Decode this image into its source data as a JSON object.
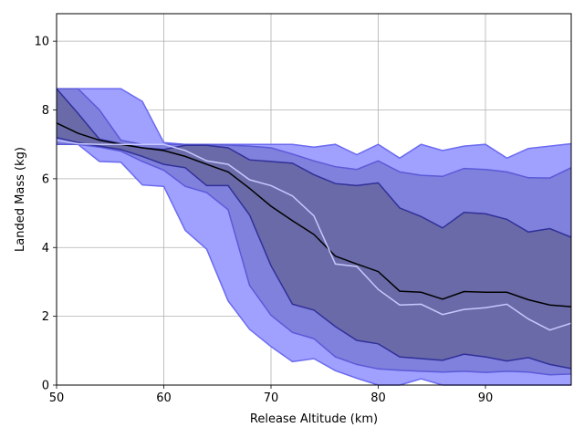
{
  "chart_data": {
    "type": "area",
    "title": "",
    "xlabel": "Release Altitude (km)",
    "ylabel": "Landed Mass (kg)",
    "xlim": [
      50,
      98
    ],
    "ylim": [
      0,
      10.8
    ],
    "xticks": [
      50,
      60,
      70,
      80,
      90
    ],
    "yticks": [
      0,
      2,
      4,
      6,
      8,
      10
    ],
    "grid": true,
    "x": [
      50,
      52,
      54,
      56,
      58,
      60,
      62,
      64,
      66,
      68,
      70,
      72,
      74,
      76,
      78,
      80,
      82,
      84,
      86,
      88,
      90,
      92,
      94,
      96,
      98
    ],
    "bands": [
      {
        "role": "outer",
        "color": "#a0a0ff",
        "edge_color": "#6a6af0",
        "upper": [
          8.62,
          8.62,
          8.62,
          8.62,
          8.25,
          7.05,
          7.0,
          7.0,
          7.0,
          7.0,
          7.0,
          7.0,
          6.92,
          7.0,
          6.7,
          7.0,
          6.6,
          7.0,
          6.82,
          6.95,
          7.0,
          6.6,
          6.88,
          6.95,
          7.02
        ],
        "lower": [
          7.0,
          7.0,
          6.5,
          6.48,
          5.82,
          5.78,
          4.5,
          3.95,
          2.45,
          1.62,
          1.12,
          0.68,
          0.77,
          0.42,
          0.2,
          0.0,
          0.0,
          0.18,
          0.0,
          0.0,
          0.0,
          0.0,
          0.0,
          0.0,
          0.0
        ]
      },
      {
        "role": "middle",
        "color": "#8080dd",
        "edge_color": "#5a5ad8",
        "upper": [
          8.62,
          8.62,
          8.0,
          7.12,
          7.0,
          7.0,
          7.0,
          7.0,
          6.98,
          6.95,
          6.9,
          6.72,
          6.52,
          6.35,
          6.27,
          6.52,
          6.2,
          6.1,
          6.07,
          6.3,
          6.27,
          6.2,
          6.03,
          6.02,
          6.32
        ],
        "lower": [
          7.0,
          7.0,
          6.92,
          6.8,
          6.5,
          6.25,
          5.78,
          5.6,
          5.1,
          2.9,
          2.03,
          1.53,
          1.35,
          0.82,
          0.6,
          0.47,
          0.43,
          0.4,
          0.38,
          0.4,
          0.37,
          0.4,
          0.38,
          0.3,
          0.32
        ]
      },
      {
        "role": "inner",
        "color": "#6a6aa8",
        "edge_color": "#30309a",
        "upper": [
          8.62,
          7.9,
          7.15,
          7.02,
          6.9,
          6.85,
          6.97,
          6.97,
          6.9,
          6.55,
          6.5,
          6.45,
          6.12,
          5.86,
          5.8,
          5.88,
          5.15,
          4.9,
          4.57,
          5.02,
          4.98,
          4.82,
          4.45,
          4.55,
          4.3
        ],
        "lower": [
          7.2,
          7.05,
          6.95,
          6.85,
          6.65,
          6.42,
          6.32,
          5.8,
          5.8,
          4.95,
          3.47,
          2.35,
          2.18,
          1.7,
          1.3,
          1.2,
          0.82,
          0.77,
          0.72,
          0.9,
          0.82,
          0.7,
          0.8,
          0.6,
          0.48
        ]
      }
    ],
    "lines": [
      {
        "role": "median",
        "color": "#000000",
        "values": [
          7.62,
          7.32,
          7.12,
          7.0,
          6.9,
          6.82,
          6.65,
          6.42,
          6.2,
          5.72,
          5.2,
          4.78,
          4.38,
          3.75,
          3.52,
          3.3,
          2.73,
          2.7,
          2.5,
          2.72,
          2.7,
          2.7,
          2.48,
          2.33,
          2.28
        ]
      },
      {
        "role": "mean",
        "color": "#c8c8ff",
        "values": [
          7.12,
          7.02,
          7.0,
          7.0,
          7.0,
          7.0,
          6.82,
          6.52,
          6.42,
          5.97,
          5.8,
          5.5,
          4.92,
          3.52,
          3.45,
          2.78,
          2.33,
          2.35,
          2.05,
          2.2,
          2.25,
          2.35,
          1.92,
          1.6,
          1.8
        ]
      }
    ]
  }
}
